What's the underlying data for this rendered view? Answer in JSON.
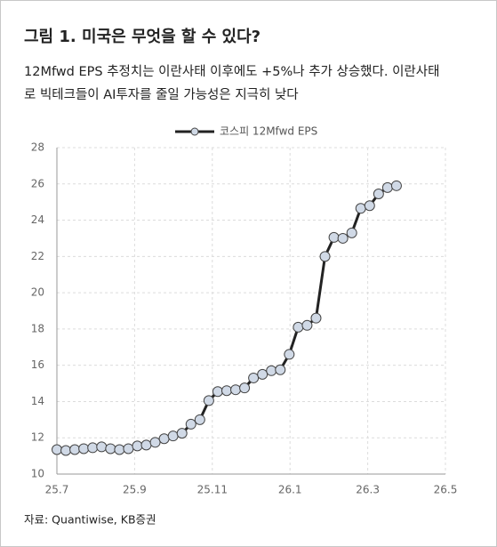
{
  "chart_data": {
    "type": "line",
    "title": "그림 1. 미국은 무엇을 할 수 있다?",
    "subtitle": [
      "12Mfwd EPS 추정치는 이란사태 이후에도 +5%나 추가 상승했다. 이란사태",
      "로 빅테크들이 AI투자를 줄일 가능성은 지극히 낮다"
    ],
    "source": "자료: Quantiwise, KB증권",
    "x": [
      7.0,
      7.23,
      7.46,
      7.69,
      7.92,
      8.15,
      8.38,
      8.61,
      8.84,
      9.07,
      9.3,
      9.53,
      9.76,
      9.99,
      10.22,
      10.45,
      10.68,
      10.91,
      11.14,
      11.37,
      11.6,
      11.83,
      12.06,
      12.29,
      12.52,
      12.75,
      12.98,
      13.21,
      13.44,
      13.67,
      13.9,
      14.13,
      14.36,
      14.59,
      14.82,
      15.05,
      15.28,
      15.51,
      15.74
    ],
    "series": [
      {
        "name": "코스피 12Mfwd EPS",
        "color": "#222222",
        "marker_color": "#d0d9e6",
        "values": [
          11.35,
          11.3,
          11.35,
          11.4,
          11.45,
          11.5,
          11.4,
          11.35,
          11.4,
          11.55,
          11.6,
          11.75,
          11.95,
          12.1,
          12.25,
          12.75,
          13.0,
          14.05,
          14.55,
          14.6,
          14.65,
          14.75,
          15.3,
          15.5,
          15.7,
          15.75,
          16.6,
          18.1,
          18.2,
          18.6,
          22.0,
          23.05,
          23.0,
          23.3,
          24.65,
          24.8,
          25.45,
          25.8,
          25.9
        ]
      }
    ],
    "xlim": [
      7,
      17
    ],
    "xticks": [
      {
        "value": 7,
        "label": "25.7"
      },
      {
        "value": 9,
        "label": "25.9"
      },
      {
        "value": 11,
        "label": "25.11"
      },
      {
        "value": 13,
        "label": "26.1"
      },
      {
        "value": 15,
        "label": "26.3"
      },
      {
        "value": 17,
        "label": "26.5"
      }
    ],
    "ylim": [
      10,
      28
    ],
    "yticks": [
      10,
      12,
      14,
      16,
      18,
      20,
      22,
      24,
      26,
      28
    ],
    "grid": true,
    "legend": "top"
  }
}
